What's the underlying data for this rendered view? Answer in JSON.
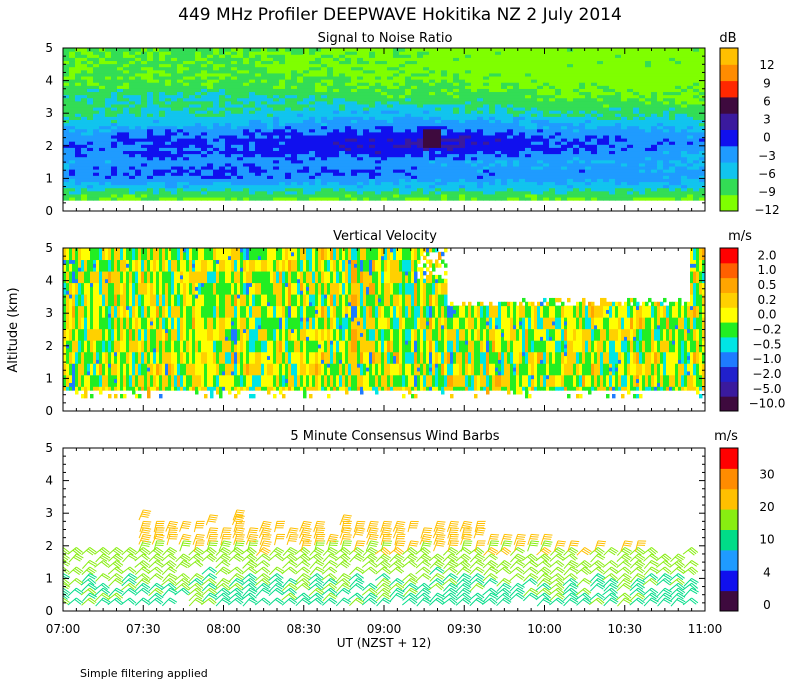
{
  "title": "449 MHz Profiler DEEPWAVE Hokitika NZ  2 July 2014",
  "footnote": "Simple filtering applied",
  "colors": {
    "snr": [
      "#7fff00",
      "#33dd55",
      "#11c4ee",
      "#1f9bff",
      "#1010ee",
      "#3a1a9e",
      "#3e0a3e",
      "#ff2800",
      "#ff8c00",
      "#ffc000"
    ],
    "velocity": [
      "#3e0a3e",
      "#3a1a9e",
      "#2020cc",
      "#1e7bff",
      "#00e5e5",
      "#22ee22",
      "#ffff00",
      "#ffd000",
      "#ffa500",
      "#ff6000",
      "#ff0000"
    ],
    "wind": [
      "#3e0a3e",
      "#1010ee",
      "#1f9bff",
      "#00dd88",
      "#88ee11",
      "#ffc000",
      "#ff8c00",
      "#ff0000"
    ]
  },
  "chart_data": [
    {
      "type": "heatmap",
      "title": "Signal to Noise Ratio",
      "ylabel": "Altitude (km)",
      "ylim": [
        0,
        5
      ],
      "yticks": [
        "0",
        "1",
        "2",
        "3",
        "4",
        "5"
      ],
      "xlim_hours": [
        7,
        11
      ],
      "colorbar_unit": "dB",
      "colorbar_ticks": [
        "12",
        "9",
        "6",
        "3",
        "0",
        "−3",
        "−6",
        "−9",
        "−12"
      ],
      "colorbar_values": [
        12,
        9,
        6,
        3,
        0,
        -3,
        -6,
        -9,
        -12
      ],
      "profile_description": "columns of SNR (dB) vs altitude; strongest (about 0 to 6 dB) near 2-2.5 km around 09:00-09:30",
      "altitudes_km": [
        0.25,
        0.5,
        0.75,
        1.0,
        1.25,
        1.5,
        1.75,
        2.0,
        2.25,
        2.5,
        2.75,
        3.0,
        3.25,
        3.5,
        3.75,
        4.0,
        4.25,
        4.5,
        4.75,
        5.0
      ],
      "times_hours": [
        7.0,
        7.5,
        8.0,
        8.5,
        9.0,
        9.5,
        10.0,
        10.5,
        11.0
      ],
      "snr_db": [
        [
          -12,
          -12,
          -12,
          -12,
          -12,
          -12,
          -12,
          -12,
          -12
        ],
        [
          -9,
          -9,
          -9,
          -9,
          -9,
          -9,
          -9,
          -9,
          -9
        ],
        [
          -6,
          -6,
          -6,
          -6,
          -6,
          -6,
          -6,
          -6,
          -6
        ],
        [
          -3,
          -2,
          -2,
          -3,
          -3,
          -3,
          -3,
          -3,
          -4
        ],
        [
          -3,
          -1,
          -1,
          -2,
          -2,
          -3,
          -3,
          -3,
          -4
        ],
        [
          -4,
          -3,
          -3,
          -3,
          -3,
          -4,
          -4,
          -4,
          -5
        ],
        [
          -3,
          -1,
          -1,
          -1,
          0,
          -1,
          -2,
          -3,
          -4
        ],
        [
          -2,
          -1,
          -1,
          0,
          1,
          2,
          -1,
          -2,
          -3
        ],
        [
          -3,
          -1,
          -1,
          0,
          1,
          1,
          -1,
          -2,
          -3
        ],
        [
          -5,
          -3,
          -3,
          -2,
          -1,
          -2,
          -3,
          -4,
          -5
        ],
        [
          -7,
          -6,
          -6,
          -4,
          -3,
          -4,
          -5,
          -6,
          -7
        ],
        [
          -8,
          -7,
          -7,
          -6,
          -5,
          -6,
          -7,
          -8,
          -8
        ],
        [
          -9,
          -8,
          -8,
          -8,
          -7,
          -8,
          -9,
          -9,
          -10
        ],
        [
          -8,
          -7,
          -7,
          -8,
          -9,
          -9,
          -10,
          -10,
          -11
        ],
        [
          -9,
          -9,
          -9,
          -10,
          -10,
          -10,
          -11,
          -11,
          -11
        ],
        [
          -10,
          -10,
          -10,
          -10,
          -11,
          -11,
          -12,
          -12,
          -12
        ],
        [
          -10,
          -10,
          -10,
          -11,
          -11,
          -11,
          -12,
          -12,
          -12
        ],
        [
          -10,
          -10,
          -10,
          -11,
          -11,
          -12,
          -12,
          -12,
          -12
        ],
        [
          -10,
          -10,
          -10,
          -11,
          -11,
          -12,
          -12,
          -12,
          -12
        ],
        [
          -10,
          -10,
          -10,
          -11,
          -11,
          -12,
          -12,
          -12,
          -12
        ]
      ]
    },
    {
      "type": "heatmap",
      "title": "Vertical Velocity",
      "ylabel": "Altitude (km)",
      "ylim": [
        0,
        5
      ],
      "yticks": [
        "0",
        "1",
        "2",
        "3",
        "4",
        "5"
      ],
      "xlim_hours": [
        7,
        11
      ],
      "colorbar_unit": "m/s",
      "colorbar_ticks": [
        "2.0",
        "1.0",
        "0.5",
        "0.2",
        "0.0",
        "−0.2",
        "−0.5",
        "−1.0",
        "−2.0",
        "−5.0",
        "−10.0"
      ],
      "colorbar_values": [
        2.0,
        1.0,
        0.5,
        0.2,
        0.0,
        -0.2,
        -0.5,
        -1.0,
        -2.0,
        -5.0,
        -10.0
      ],
      "data_floor_km": 0.6,
      "missing_region": {
        "time_hours": [
          9.4,
          10.9
        ],
        "altitude_km": [
          3.2,
          5.0
        ]
      }
    },
    {
      "type": "wind barbs",
      "title": "5 Minute Consensus Wind Barbs",
      "ylabel": "Altitude (km)",
      "ylim": [
        0,
        5
      ],
      "yticks": [
        "0",
        "1",
        "2",
        "3",
        "4",
        "5"
      ],
      "xlim_hours": [
        7,
        11
      ],
      "interval_minutes": 5,
      "colorbar_unit": "m/s",
      "colorbar_ticks": [
        "30",
        "20",
        "10",
        "4",
        "0"
      ],
      "colorbar_values": [
        30,
        20,
        10,
        4,
        0
      ],
      "speed_profile_ms": [
        {
          "altitude_km": 0.5,
          "speed": 9
        },
        {
          "altitude_km": 1.0,
          "speed": 10
        },
        {
          "altitude_km": 1.5,
          "speed": 12
        },
        {
          "altitude_km": 2.0,
          "speed": 14
        },
        {
          "altitude_km": 2.5,
          "speed": 18
        },
        {
          "altitude_km": 3.0,
          "speed": 21
        }
      ],
      "xlabel": "UT  (NZST + 12)",
      "xticks": [
        "07:00",
        "07:30",
        "08:00",
        "08:30",
        "09:00",
        "09:30",
        "10:00",
        "10:30",
        "11:00"
      ]
    }
  ]
}
